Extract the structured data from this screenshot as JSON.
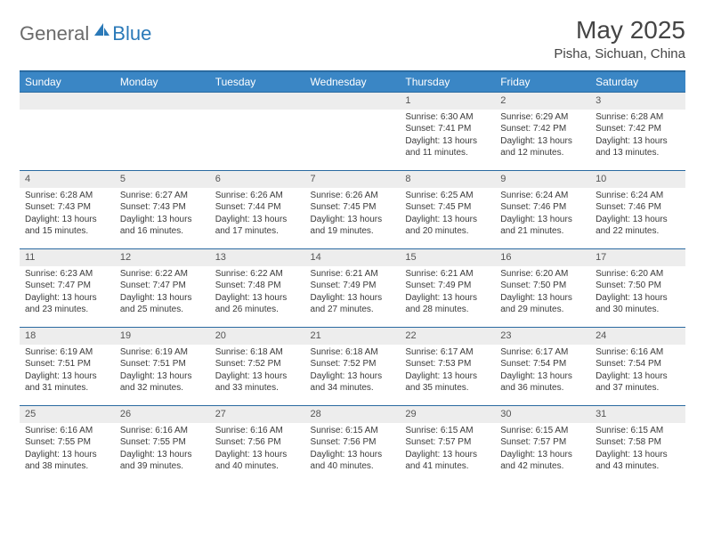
{
  "brand": {
    "first": "General",
    "second": "Blue"
  },
  "title": "May 2025",
  "location": "Pisha, Sichuan, China",
  "colors": {
    "header_bg": "#3a86c5",
    "header_border": "#2a6aa0",
    "daynum_bg": "#ededed",
    "text": "#3a3a3a",
    "brand_gray": "#6b6b6b",
    "brand_blue": "#2a79b8"
  },
  "weekdays": [
    "Sunday",
    "Monday",
    "Tuesday",
    "Wednesday",
    "Thursday",
    "Friday",
    "Saturday"
  ],
  "weeks": [
    [
      null,
      null,
      null,
      null,
      {
        "n": "1",
        "sr": "Sunrise: 6:30 AM",
        "ss": "Sunset: 7:41 PM",
        "dl1": "Daylight: 13 hours",
        "dl2": "and 11 minutes."
      },
      {
        "n": "2",
        "sr": "Sunrise: 6:29 AM",
        "ss": "Sunset: 7:42 PM",
        "dl1": "Daylight: 13 hours",
        "dl2": "and 12 minutes."
      },
      {
        "n": "3",
        "sr": "Sunrise: 6:28 AM",
        "ss": "Sunset: 7:42 PM",
        "dl1": "Daylight: 13 hours",
        "dl2": "and 13 minutes."
      }
    ],
    [
      {
        "n": "4",
        "sr": "Sunrise: 6:28 AM",
        "ss": "Sunset: 7:43 PM",
        "dl1": "Daylight: 13 hours",
        "dl2": "and 15 minutes."
      },
      {
        "n": "5",
        "sr": "Sunrise: 6:27 AM",
        "ss": "Sunset: 7:43 PM",
        "dl1": "Daylight: 13 hours",
        "dl2": "and 16 minutes."
      },
      {
        "n": "6",
        "sr": "Sunrise: 6:26 AM",
        "ss": "Sunset: 7:44 PM",
        "dl1": "Daylight: 13 hours",
        "dl2": "and 17 minutes."
      },
      {
        "n": "7",
        "sr": "Sunrise: 6:26 AM",
        "ss": "Sunset: 7:45 PM",
        "dl1": "Daylight: 13 hours",
        "dl2": "and 19 minutes."
      },
      {
        "n": "8",
        "sr": "Sunrise: 6:25 AM",
        "ss": "Sunset: 7:45 PM",
        "dl1": "Daylight: 13 hours",
        "dl2": "and 20 minutes."
      },
      {
        "n": "9",
        "sr": "Sunrise: 6:24 AM",
        "ss": "Sunset: 7:46 PM",
        "dl1": "Daylight: 13 hours",
        "dl2": "and 21 minutes."
      },
      {
        "n": "10",
        "sr": "Sunrise: 6:24 AM",
        "ss": "Sunset: 7:46 PM",
        "dl1": "Daylight: 13 hours",
        "dl2": "and 22 minutes."
      }
    ],
    [
      {
        "n": "11",
        "sr": "Sunrise: 6:23 AM",
        "ss": "Sunset: 7:47 PM",
        "dl1": "Daylight: 13 hours",
        "dl2": "and 23 minutes."
      },
      {
        "n": "12",
        "sr": "Sunrise: 6:22 AM",
        "ss": "Sunset: 7:47 PM",
        "dl1": "Daylight: 13 hours",
        "dl2": "and 25 minutes."
      },
      {
        "n": "13",
        "sr": "Sunrise: 6:22 AM",
        "ss": "Sunset: 7:48 PM",
        "dl1": "Daylight: 13 hours",
        "dl2": "and 26 minutes."
      },
      {
        "n": "14",
        "sr": "Sunrise: 6:21 AM",
        "ss": "Sunset: 7:49 PM",
        "dl1": "Daylight: 13 hours",
        "dl2": "and 27 minutes."
      },
      {
        "n": "15",
        "sr": "Sunrise: 6:21 AM",
        "ss": "Sunset: 7:49 PM",
        "dl1": "Daylight: 13 hours",
        "dl2": "and 28 minutes."
      },
      {
        "n": "16",
        "sr": "Sunrise: 6:20 AM",
        "ss": "Sunset: 7:50 PM",
        "dl1": "Daylight: 13 hours",
        "dl2": "and 29 minutes."
      },
      {
        "n": "17",
        "sr": "Sunrise: 6:20 AM",
        "ss": "Sunset: 7:50 PM",
        "dl1": "Daylight: 13 hours",
        "dl2": "and 30 minutes."
      }
    ],
    [
      {
        "n": "18",
        "sr": "Sunrise: 6:19 AM",
        "ss": "Sunset: 7:51 PM",
        "dl1": "Daylight: 13 hours",
        "dl2": "and 31 minutes."
      },
      {
        "n": "19",
        "sr": "Sunrise: 6:19 AM",
        "ss": "Sunset: 7:51 PM",
        "dl1": "Daylight: 13 hours",
        "dl2": "and 32 minutes."
      },
      {
        "n": "20",
        "sr": "Sunrise: 6:18 AM",
        "ss": "Sunset: 7:52 PM",
        "dl1": "Daylight: 13 hours",
        "dl2": "and 33 minutes."
      },
      {
        "n": "21",
        "sr": "Sunrise: 6:18 AM",
        "ss": "Sunset: 7:52 PM",
        "dl1": "Daylight: 13 hours",
        "dl2": "and 34 minutes."
      },
      {
        "n": "22",
        "sr": "Sunrise: 6:17 AM",
        "ss": "Sunset: 7:53 PM",
        "dl1": "Daylight: 13 hours",
        "dl2": "and 35 minutes."
      },
      {
        "n": "23",
        "sr": "Sunrise: 6:17 AM",
        "ss": "Sunset: 7:54 PM",
        "dl1": "Daylight: 13 hours",
        "dl2": "and 36 minutes."
      },
      {
        "n": "24",
        "sr": "Sunrise: 6:16 AM",
        "ss": "Sunset: 7:54 PM",
        "dl1": "Daylight: 13 hours",
        "dl2": "and 37 minutes."
      }
    ],
    [
      {
        "n": "25",
        "sr": "Sunrise: 6:16 AM",
        "ss": "Sunset: 7:55 PM",
        "dl1": "Daylight: 13 hours",
        "dl2": "and 38 minutes."
      },
      {
        "n": "26",
        "sr": "Sunrise: 6:16 AM",
        "ss": "Sunset: 7:55 PM",
        "dl1": "Daylight: 13 hours",
        "dl2": "and 39 minutes."
      },
      {
        "n": "27",
        "sr": "Sunrise: 6:16 AM",
        "ss": "Sunset: 7:56 PM",
        "dl1": "Daylight: 13 hours",
        "dl2": "and 40 minutes."
      },
      {
        "n": "28",
        "sr": "Sunrise: 6:15 AM",
        "ss": "Sunset: 7:56 PM",
        "dl1": "Daylight: 13 hours",
        "dl2": "and 40 minutes."
      },
      {
        "n": "29",
        "sr": "Sunrise: 6:15 AM",
        "ss": "Sunset: 7:57 PM",
        "dl1": "Daylight: 13 hours",
        "dl2": "and 41 minutes."
      },
      {
        "n": "30",
        "sr": "Sunrise: 6:15 AM",
        "ss": "Sunset: 7:57 PM",
        "dl1": "Daylight: 13 hours",
        "dl2": "and 42 minutes."
      },
      {
        "n": "31",
        "sr": "Sunrise: 6:15 AM",
        "ss": "Sunset: 7:58 PM",
        "dl1": "Daylight: 13 hours",
        "dl2": "and 43 minutes."
      }
    ]
  ]
}
